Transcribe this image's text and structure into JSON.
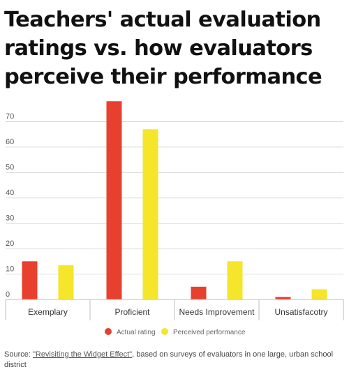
{
  "chart_data": {
    "type": "bar",
    "title": "Teachers' actual evaluation ratings vs. how evaluators perceive their performance",
    "categories": [
      "Exemplary",
      "Proficient",
      "Needs Improvement",
      "Unsatisfacotry"
    ],
    "series": [
      {
        "name": "Actual rating",
        "values": [
          15,
          78,
          5,
          1
        ],
        "color": "#e8402f"
      },
      {
        "name": "Perceived performance",
        "values": [
          13.5,
          67,
          15,
          4
        ],
        "color": "#f5e52b"
      }
    ],
    "yticks": [
      0,
      10,
      20,
      30,
      40,
      50,
      60,
      70
    ],
    "ylim": [
      0,
      80
    ],
    "grid": true,
    "legend": "bottom-center"
  },
  "source": {
    "prefix": "Source: ",
    "link_text": "\"Revisiting the Widget Effect\"",
    "suffix": ", based on surveys of evaluators in one large, urban school district"
  }
}
